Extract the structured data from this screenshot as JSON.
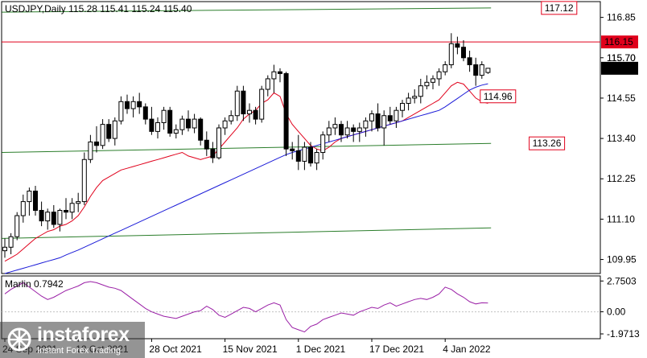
{
  "chart_data": [
    {
      "type": "candlestick",
      "header": "USDJPY,Daily  115.28 115.41 115.24 115.40",
      "x_labels": [
        "24 Sep 2021",
        "12 Oct 2021",
        "28 Oct 2021",
        "15 Nov 2021",
        "1 Dec 2021",
        "17 Dec 2021",
        "4 Jan 2022"
      ],
      "x_label_bar_index": [
        0,
        12,
        24,
        36,
        48,
        60,
        72
      ],
      "y_ticks": [
        109.95,
        111.1,
        112.25,
        113.4,
        114.55,
        115.7,
        116.85
      ],
      "ylim": [
        109.55,
        117.3
      ],
      "ohlc": [
        [
          110.2,
          110.55,
          110.0,
          110.3
        ],
        [
          110.3,
          110.7,
          110.1,
          110.6
        ],
        [
          110.6,
          111.3,
          110.5,
          111.2
        ],
        [
          111.2,
          111.8,
          111.0,
          111.6
        ],
        [
          111.6,
          112.0,
          111.2,
          111.9
        ],
        [
          111.9,
          112.05,
          111.2,
          111.35
        ],
        [
          111.35,
          111.6,
          110.9,
          111.05
        ],
        [
          111.05,
          111.4,
          110.8,
          111.3
        ],
        [
          111.3,
          111.5,
          110.85,
          110.95
        ],
        [
          110.95,
          111.4,
          110.75,
          111.35
        ],
        [
          111.35,
          111.7,
          111.1,
          111.3
        ],
        [
          111.3,
          111.7,
          111.1,
          111.55
        ],
        [
          111.55,
          111.85,
          111.3,
          111.6
        ],
        [
          111.6,
          113.0,
          111.5,
          112.8
        ],
        [
          112.8,
          113.5,
          112.7,
          113.3
        ],
        [
          113.3,
          113.75,
          113.0,
          113.2
        ],
        [
          113.2,
          113.95,
          113.1,
          113.8
        ],
        [
          113.8,
          113.95,
          113.3,
          113.4
        ],
        [
          113.4,
          114.0,
          113.2,
          113.9
        ],
        [
          113.9,
          114.6,
          113.8,
          114.45
        ],
        [
          114.45,
          114.65,
          114.1,
          114.25
        ],
        [
          114.25,
          114.6,
          114.0,
          114.45
        ],
        [
          114.45,
          114.7,
          114.1,
          114.3
        ],
        [
          114.3,
          114.4,
          113.8,
          113.95
        ],
        [
          113.95,
          114.3,
          113.5,
          113.6
        ],
        [
          113.6,
          114.0,
          113.4,
          113.85
        ],
        [
          113.85,
          114.3,
          113.65,
          114.2
        ],
        [
          114.2,
          114.3,
          113.45,
          113.55
        ],
        [
          113.55,
          113.8,
          113.4,
          113.65
        ],
        [
          113.65,
          114.05,
          113.5,
          113.95
        ],
        [
          113.95,
          114.2,
          113.6,
          113.7
        ],
        [
          113.7,
          114.1,
          113.55,
          113.95
        ],
        [
          113.95,
          114.0,
          113.2,
          113.35
        ],
        [
          113.35,
          113.6,
          112.9,
          113.1
        ],
        [
          113.1,
          113.3,
          112.7,
          112.85
        ],
        [
          112.85,
          113.8,
          112.8,
          113.7
        ],
        [
          113.7,
          114.0,
          113.5,
          113.9
        ],
        [
          113.9,
          114.2,
          113.8,
          114.05
        ],
        [
          114.05,
          114.9,
          113.9,
          114.75
        ],
        [
          114.75,
          114.9,
          113.9,
          114.1
        ],
        [
          114.1,
          114.4,
          113.85,
          114.2
        ],
        [
          114.2,
          114.3,
          113.8,
          113.95
        ],
        [
          113.95,
          114.9,
          113.85,
          114.8
        ],
        [
          114.8,
          115.2,
          114.6,
          115.1
        ],
        [
          115.1,
          115.5,
          114.7,
          115.3
        ],
        [
          115.3,
          115.4,
          115.0,
          115.25
        ],
        [
          115.25,
          115.3,
          112.9,
          113.1
        ],
        [
          113.1,
          113.3,
          112.8,
          113.05
        ],
        [
          113.05,
          113.5,
          112.5,
          112.75
        ],
        [
          112.75,
          113.3,
          112.5,
          113.15
        ],
        [
          113.15,
          113.3,
          112.6,
          112.7
        ],
        [
          112.7,
          113.1,
          112.5,
          113.0
        ],
        [
          113.0,
          113.6,
          112.8,
          113.5
        ],
        [
          113.5,
          113.9,
          113.3,
          113.7
        ],
        [
          113.7,
          114.0,
          113.5,
          113.8
        ],
        [
          113.8,
          113.9,
          113.3,
          113.5
        ],
        [
          113.5,
          113.9,
          113.4,
          113.7
        ],
        [
          113.7,
          113.8,
          113.3,
          113.6
        ],
        [
          113.6,
          113.85,
          113.3,
          113.7
        ],
        [
          113.7,
          114.0,
          113.45,
          113.9
        ],
        [
          113.9,
          114.2,
          113.6,
          114.1
        ],
        [
          114.1,
          114.4,
          113.6,
          113.7
        ],
        [
          113.7,
          114.2,
          113.2,
          114.05
        ],
        [
          114.05,
          114.3,
          113.8,
          113.9
        ],
        [
          113.9,
          114.3,
          113.7,
          114.2
        ],
        [
          114.2,
          114.5,
          114.0,
          114.4
        ],
        [
          114.4,
          114.7,
          114.2,
          114.55
        ],
        [
          114.55,
          114.8,
          114.4,
          114.6
        ],
        [
          114.6,
          115.1,
          114.4,
          114.9
        ],
        [
          114.9,
          115.2,
          114.8,
          115.0
        ],
        [
          115.0,
          115.2,
          114.8,
          115.1
        ],
        [
          115.1,
          115.4,
          114.9,
          115.3
        ],
        [
          115.3,
          115.6,
          115.2,
          115.5
        ],
        [
          115.5,
          116.4,
          115.4,
          116.1
        ],
        [
          116.1,
          116.3,
          115.8,
          116.0
        ],
        [
          116.0,
          116.2,
          115.6,
          115.7
        ],
        [
          115.7,
          115.9,
          115.3,
          115.5
        ],
        [
          115.5,
          115.7,
          114.9,
          115.2
        ],
        [
          115.2,
          115.6,
          115.1,
          115.5
        ],
        [
          115.28,
          115.41,
          115.24,
          115.4
        ]
      ],
      "overlays": [
        {
          "color": "#e0001b",
          "kind": "ma-fast",
          "values": [
            109.9,
            110.0,
            110.1,
            110.25,
            110.4,
            110.55,
            110.65,
            110.75,
            110.8,
            110.9,
            110.95,
            111.05,
            111.2,
            111.45,
            111.75,
            112.0,
            112.2,
            112.3,
            112.4,
            112.5,
            112.55,
            112.6,
            112.65,
            112.7,
            112.75,
            112.8,
            112.85,
            112.9,
            112.95,
            113.0,
            112.9,
            112.85,
            112.8,
            112.85,
            112.9,
            113.1,
            113.3,
            113.5,
            113.7,
            113.95,
            114.1,
            114.2,
            114.4,
            114.5,
            114.7,
            114.6,
            114.1,
            113.8,
            113.6,
            113.4,
            113.2,
            113.1,
            113.05,
            113.15,
            113.3,
            113.4,
            113.45,
            113.5,
            113.55,
            113.6,
            113.65,
            113.7,
            113.75,
            113.8,
            113.85,
            113.9,
            114.0,
            114.1,
            114.2,
            114.3,
            114.4,
            114.5,
            114.7,
            114.9,
            115.0,
            114.95,
            114.75,
            114.55,
            114.45,
            114.4
          ]
        },
        {
          "color": "#1b1bd8",
          "kind": "ma-slow",
          "values": [
            109.55,
            109.6,
            109.65,
            109.7,
            109.75,
            109.8,
            109.85,
            109.9,
            109.95,
            110.0,
            110.08,
            110.15,
            110.22,
            110.3,
            110.38,
            110.46,
            110.54,
            110.62,
            110.7,
            110.78,
            110.86,
            110.94,
            111.02,
            111.1,
            111.18,
            111.26,
            111.34,
            111.42,
            111.5,
            111.58,
            111.66,
            111.74,
            111.82,
            111.9,
            111.98,
            112.06,
            112.14,
            112.22,
            112.3,
            112.38,
            112.46,
            112.54,
            112.62,
            112.7,
            112.78,
            112.86,
            112.94,
            113.0,
            113.05,
            113.1,
            113.15,
            113.2,
            113.25,
            113.3,
            113.35,
            113.4,
            113.45,
            113.5,
            113.55,
            113.6,
            113.65,
            113.7,
            113.75,
            113.8,
            113.85,
            113.9,
            113.95,
            114.0,
            114.05,
            114.1,
            114.15,
            114.2,
            114.3,
            114.42,
            114.54,
            114.66,
            114.78,
            114.86,
            114.92,
            114.96
          ]
        }
      ],
      "trend_lines": [
        {
          "color": "#2a7d2a",
          "x": [
            -0.5,
            79.5
          ],
          "y": [
            117.0,
            117.12
          ]
        },
        {
          "color": "#2a7d2a",
          "x": [
            -0.5,
            79.5
          ],
          "y": [
            113.0,
            113.26
          ]
        },
        {
          "color": "#2a7d2a",
          "x": [
            -0.5,
            79.5
          ],
          "y": [
            110.55,
            110.85
          ]
        }
      ],
      "level_lines": [
        {
          "value": 116.15,
          "label": "116.15",
          "color": "#e0001b"
        }
      ],
      "callouts": [
        {
          "label": "117.12",
          "x": 88,
          "y": 117.12
        },
        {
          "label": "114.96",
          "x": 78,
          "y": 114.6
        },
        {
          "label": "113.26",
          "x": 86,
          "y": 113.26
        }
      ],
      "current_price": {
        "value": 115.4,
        "label": "115.40"
      },
      "extra_price_label": "115.70"
    },
    {
      "type": "line",
      "title": "Marlin 0.7942",
      "ylim": [
        -2.4,
        3.2
      ],
      "y_ticks": [
        "2.7503",
        "0.00",
        "-1.9713"
      ],
      "y_tick_values": [
        2.7503,
        0.0,
        -1.9713
      ],
      "color": "#9a1fa6",
      "values": [
        1.6,
        2.0,
        2.3,
        2.6,
        2.2,
        1.8,
        1.4,
        1.1,
        1.3,
        1.6,
        1.9,
        2.1,
        2.3,
        2.6,
        2.7,
        2.6,
        2.4,
        2.2,
        2.1,
        1.9,
        1.5,
        1.1,
        0.7,
        0.3,
        0.0,
        -0.2,
        -0.4,
        -0.5,
        -0.6,
        -0.4,
        -0.2,
        0.0,
        0.1,
        0.5,
        0.2,
        -0.3,
        -0.5,
        -0.2,
        0.1,
        0.4,
        0.3,
        0.0,
        0.3,
        0.6,
        0.8,
        0.6,
        -0.7,
        -1.4,
        -1.6,
        -1.8,
        -1.3,
        -1.1,
        -0.7,
        -0.5,
        -0.3,
        -0.1,
        -0.2,
        -0.3,
        0.0,
        0.2,
        0.4,
        0.3,
        0.6,
        0.8,
        0.5,
        0.7,
        0.9,
        1.1,
        1.2,
        1.1,
        1.3,
        1.6,
        2.2,
        2.0,
        1.6,
        1.3,
        0.9,
        0.7,
        0.8,
        0.79
      ]
    }
  ],
  "watermark": {
    "name": "instaforex",
    "tagline": "Instant Forex Trading"
  }
}
